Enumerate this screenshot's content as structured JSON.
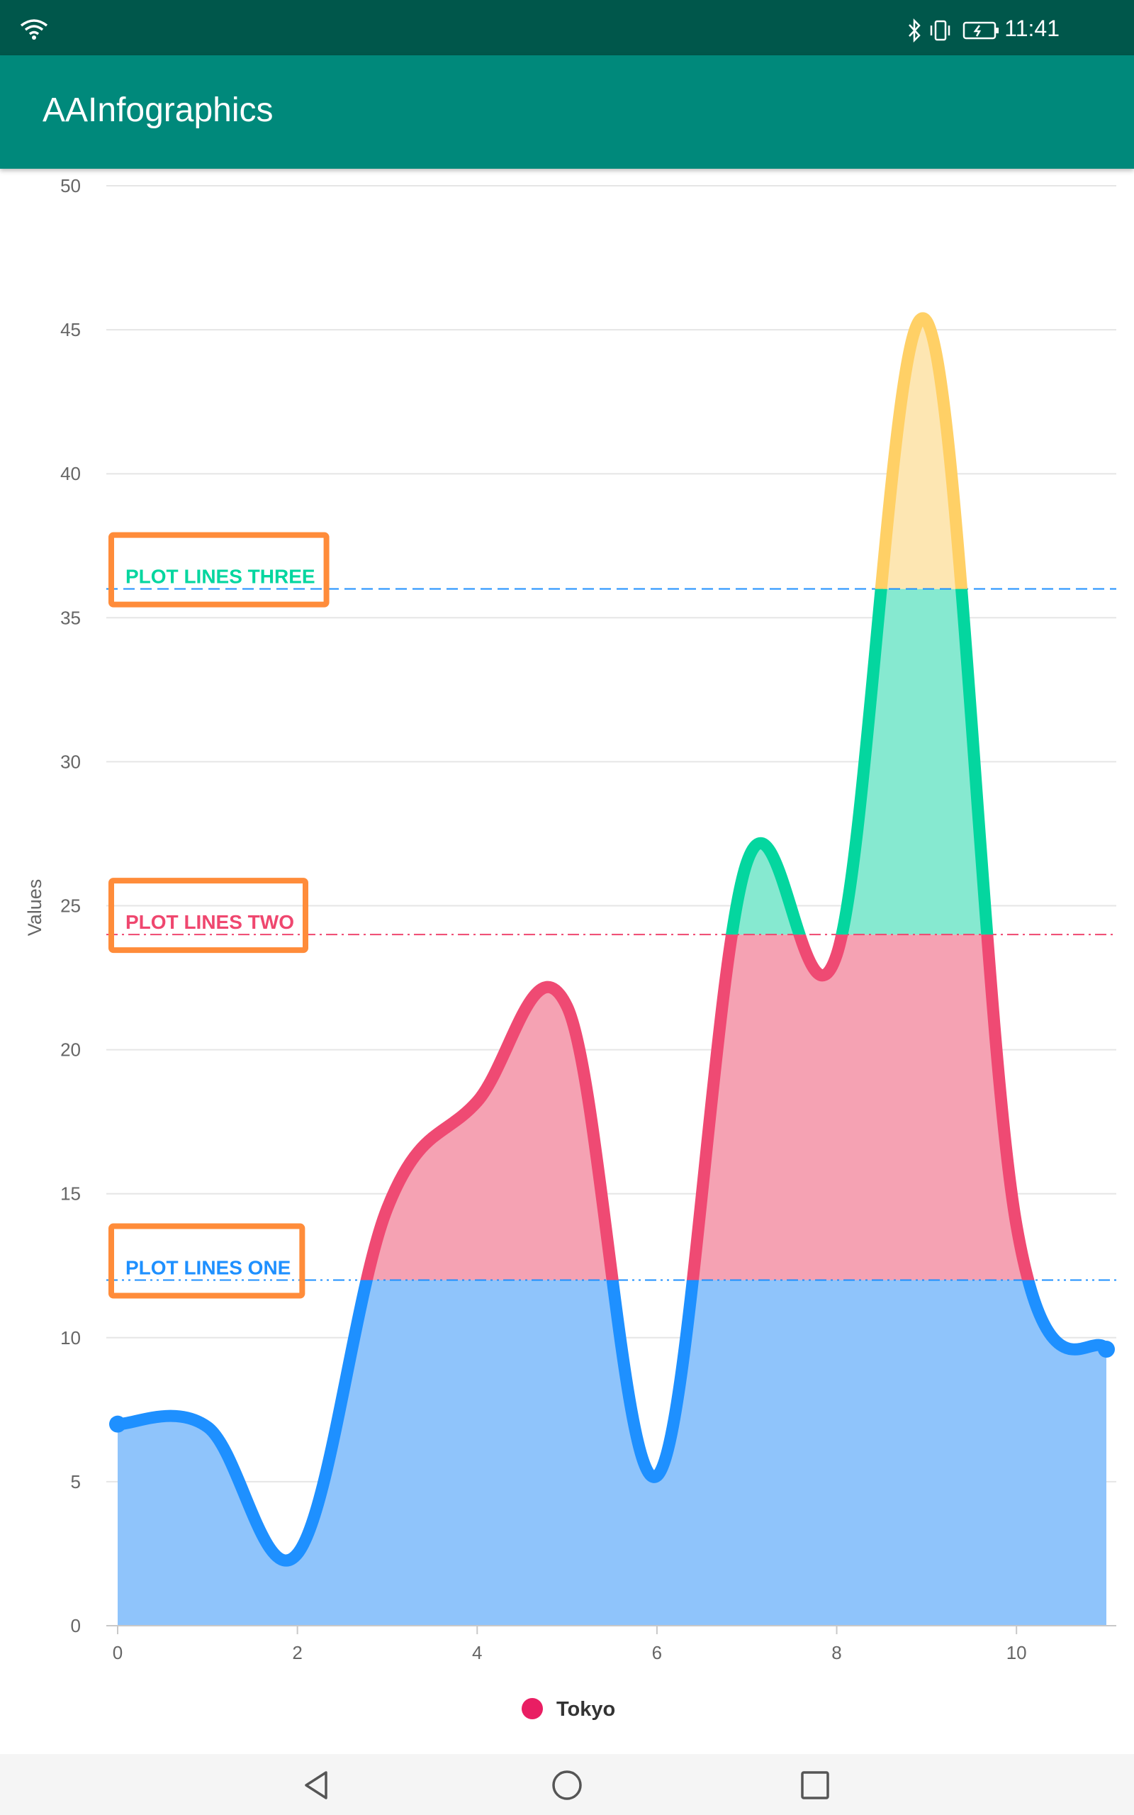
{
  "status_bar": {
    "time": "11:41"
  },
  "app_bar": {
    "title": "AAInfographics"
  },
  "chart_data": {
    "type": "area",
    "title": "",
    "xlabel": "",
    "ylabel": "Values",
    "xlim": [
      0,
      11
    ],
    "ylim": [
      0,
      50
    ],
    "x_ticks": [
      0,
      2,
      4,
      6,
      8,
      10
    ],
    "y_ticks": [
      0,
      5,
      10,
      15,
      20,
      25,
      30,
      35,
      40,
      45,
      50
    ],
    "smoothing": "spline",
    "grid": true,
    "legend": "bottom-center",
    "series": [
      {
        "name": "Tokyo",
        "marker_color": "#e91e63",
        "x": [
          0,
          1,
          2,
          3,
          4,
          5,
          6,
          7,
          8,
          9,
          10,
          11
        ],
        "values": [
          7.0,
          6.9,
          2.5,
          14.5,
          18.2,
          21.5,
          5.2,
          26.5,
          23.3,
          45.3,
          13.9,
          9.6
        ]
      }
    ],
    "zones": [
      {
        "up_to": 12,
        "line_color": "#1e90ff",
        "fill_color": "#8fc4fb"
      },
      {
        "up_to": 24,
        "line_color": "#ef4a73",
        "fill_color": "#f5a2b3"
      },
      {
        "up_to": 36,
        "line_color": "#04d69f",
        "fill_color": "#86e9d0"
      },
      {
        "up_to": null,
        "line_color": "#ffd066",
        "fill_color": "#fde6b2"
      }
    ],
    "plot_lines": [
      {
        "value": 12,
        "label": "PLOT LINES ONE",
        "color": "#1e90ff",
        "dash": "dashdotdot"
      },
      {
        "value": 24,
        "label": "PLOT LINES TWO",
        "color": "#ef476f",
        "dash": "dashdot"
      },
      {
        "value": 36,
        "label": "PLOT LINES THREE",
        "color": "#1e90ff",
        "label_color": "#04d69f",
        "dash": "dash"
      }
    ],
    "annotation_box_color": "#ff8c3a"
  }
}
